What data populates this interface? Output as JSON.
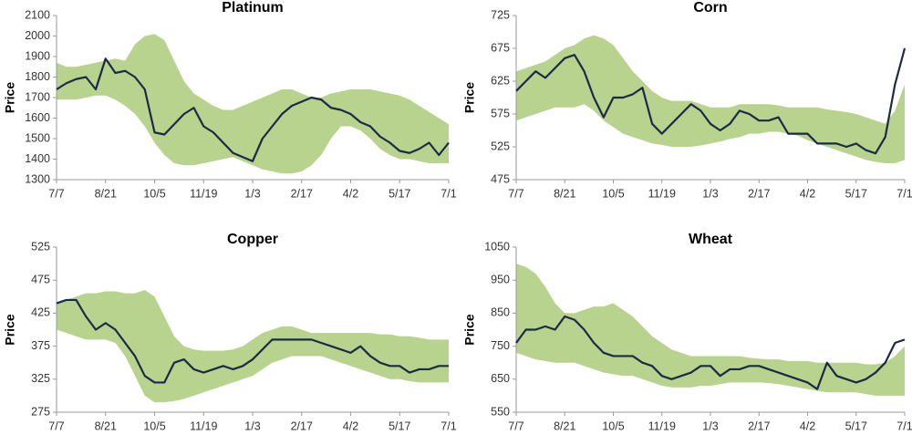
{
  "chart_data": [
    {
      "type": "band-line",
      "title": "Platinum",
      "y_label": "Price",
      "categories": [
        "7/7",
        null,
        null,
        null,
        null,
        "8/21",
        null,
        null,
        null,
        null,
        "10/5",
        null,
        null,
        null,
        null,
        "11/19",
        null,
        null,
        null,
        null,
        "1/3",
        null,
        null,
        null,
        null,
        "2/17",
        null,
        null,
        null,
        null,
        "4/2",
        null,
        null,
        null,
        null,
        "5/17",
        null,
        null,
        null,
        null,
        "7/1"
      ],
      "values": [
        1740,
        1770,
        1790,
        1800,
        1740,
        1890,
        1820,
        1830,
        1800,
        1740,
        1530,
        1520,
        1570,
        1620,
        1650,
        1560,
        1530,
        1480,
        1430,
        1410,
        1390,
        1500,
        1560,
        1620,
        1660,
        1680,
        1700,
        1690,
        1650,
        1640,
        1620,
        1580,
        1560,
        1510,
        1480,
        1440,
        1430,
        1450,
        1480,
        1420,
        1480
      ],
      "band_upper": [
        1870,
        1850,
        1850,
        1860,
        1870,
        1880,
        1890,
        1880,
        1960,
        2000,
        2010,
        1980,
        1880,
        1780,
        1720,
        1690,
        1660,
        1640,
        1640,
        1660,
        1680,
        1700,
        1720,
        1740,
        1740,
        1720,
        1700,
        1700,
        1720,
        1730,
        1740,
        1740,
        1740,
        1730,
        1720,
        1710,
        1690,
        1660,
        1630,
        1600,
        1570
      ],
      "band_lower": [
        1690,
        1690,
        1690,
        1700,
        1710,
        1710,
        1690,
        1660,
        1620,
        1560,
        1480,
        1420,
        1380,
        1370,
        1370,
        1380,
        1390,
        1400,
        1410,
        1390,
        1370,
        1350,
        1340,
        1330,
        1330,
        1340,
        1370,
        1420,
        1500,
        1560,
        1560,
        1540,
        1500,
        1450,
        1420,
        1400,
        1400,
        1390,
        1380,
        1380,
        1380
      ],
      "color": "#1b2a47",
      "band_color": "#b7d38e",
      "ylim": [
        1300,
        2100
      ],
      "yticks": [
        1300,
        1400,
        1500,
        1600,
        1700,
        1800,
        1900,
        2000,
        2100
      ]
    },
    {
      "type": "band-line",
      "title": "Corn",
      "y_label": "Price",
      "categories": [
        "7/7",
        null,
        null,
        null,
        null,
        "8/21",
        null,
        null,
        null,
        null,
        "10/5",
        null,
        null,
        null,
        null,
        "11/19",
        null,
        null,
        null,
        null,
        "1/3",
        null,
        null,
        null,
        null,
        "2/17",
        null,
        null,
        null,
        null,
        "4/2",
        null,
        null,
        null,
        null,
        "5/17",
        null,
        null,
        null,
        null,
        "7/1"
      ],
      "values": [
        610,
        625,
        640,
        630,
        645,
        660,
        665,
        640,
        600,
        570,
        600,
        600,
        605,
        615,
        560,
        545,
        560,
        575,
        590,
        580,
        560,
        550,
        560,
        580,
        575,
        565,
        565,
        570,
        545,
        545,
        545,
        530,
        530,
        530,
        525,
        530,
        520,
        515,
        540,
        620,
        675
      ],
      "band_upper": [
        640,
        645,
        650,
        655,
        665,
        675,
        680,
        690,
        695,
        690,
        680,
        660,
        640,
        625,
        610,
        600,
        595,
        595,
        595,
        590,
        585,
        585,
        585,
        590,
        590,
        590,
        590,
        588,
        585,
        585,
        585,
        585,
        582,
        580,
        578,
        575,
        570,
        565,
        560,
        580,
        620
      ],
      "band_lower": [
        565,
        570,
        575,
        580,
        585,
        585,
        585,
        590,
        580,
        565,
        555,
        545,
        540,
        535,
        530,
        528,
        525,
        525,
        525,
        527,
        530,
        533,
        537,
        540,
        545,
        545,
        548,
        548,
        545,
        542,
        535,
        530,
        525,
        520,
        515,
        510,
        505,
        502,
        500,
        500,
        505
      ],
      "color": "#1b2a47",
      "band_color": "#b7d38e",
      "ylim": [
        475,
        725
      ],
      "yticks": [
        475,
        525,
        575,
        625,
        675,
        725
      ]
    },
    {
      "type": "band-line",
      "title": "Copper",
      "y_label": "Price",
      "categories": [
        "7/7",
        null,
        null,
        null,
        null,
        "8/21",
        null,
        null,
        null,
        null,
        "10/5",
        null,
        null,
        null,
        null,
        "11/19",
        null,
        null,
        null,
        null,
        "1/3",
        null,
        null,
        null,
        null,
        "2/17",
        null,
        null,
        null,
        null,
        "4/2",
        null,
        null,
        null,
        null,
        "5/17",
        null,
        null,
        null,
        null,
        "7/1"
      ],
      "values": [
        440,
        445,
        445,
        420,
        400,
        410,
        400,
        380,
        360,
        330,
        320,
        320,
        350,
        355,
        340,
        335,
        340,
        345,
        340,
        345,
        355,
        370,
        385,
        385,
        385,
        385,
        385,
        380,
        375,
        370,
        365,
        375,
        360,
        350,
        345,
        345,
        335,
        340,
        340,
        345,
        345
      ],
      "band_upper": [
        440,
        445,
        450,
        455,
        455,
        458,
        458,
        455,
        455,
        460,
        450,
        420,
        390,
        375,
        370,
        368,
        368,
        368,
        370,
        375,
        385,
        395,
        400,
        405,
        405,
        400,
        395,
        395,
        395,
        395,
        395,
        395,
        395,
        393,
        393,
        390,
        390,
        388,
        385,
        385,
        385
      ],
      "band_lower": [
        400,
        395,
        390,
        385,
        385,
        385,
        380,
        360,
        330,
        300,
        290,
        290,
        292,
        295,
        300,
        305,
        310,
        315,
        320,
        325,
        330,
        340,
        350,
        355,
        360,
        360,
        360,
        360,
        355,
        350,
        345,
        340,
        335,
        330,
        325,
        325,
        322,
        320,
        320,
        320,
        320
      ],
      "color": "#1b2a47",
      "band_color": "#b7d38e",
      "ylim": [
        275,
        525
      ],
      "yticks": [
        275,
        325,
        375,
        425,
        475,
        525
      ]
    },
    {
      "type": "band-line",
      "title": "Wheat",
      "y_label": "Price",
      "categories": [
        "7/7",
        null,
        null,
        null,
        null,
        "8/21",
        null,
        null,
        null,
        null,
        "10/5",
        null,
        null,
        null,
        null,
        "11/19",
        null,
        null,
        null,
        null,
        "1/3",
        null,
        null,
        null,
        null,
        "2/17",
        null,
        null,
        null,
        null,
        "4/2",
        null,
        null,
        null,
        null,
        "5/17",
        null,
        null,
        null,
        null,
        "7/1"
      ],
      "values": [
        760,
        800,
        800,
        810,
        800,
        840,
        830,
        800,
        760,
        730,
        720,
        720,
        720,
        700,
        690,
        660,
        650,
        660,
        670,
        690,
        690,
        660,
        680,
        680,
        690,
        690,
        680,
        670,
        660,
        650,
        640,
        620,
        700,
        660,
        650,
        640,
        650,
        670,
        700,
        760,
        770
      ],
      "band_upper": [
        1000,
        990,
        970,
        930,
        880,
        850,
        850,
        860,
        870,
        870,
        880,
        860,
        840,
        810,
        780,
        760,
        740,
        730,
        720,
        720,
        720,
        720,
        720,
        720,
        715,
        712,
        710,
        710,
        705,
        705,
        705,
        700,
        700,
        700,
        700,
        700,
        695,
        695,
        700,
        720,
        750
      ],
      "band_lower": [
        730,
        720,
        710,
        705,
        700,
        700,
        700,
        690,
        680,
        670,
        665,
        660,
        660,
        650,
        640,
        630,
        625,
        625,
        625,
        630,
        630,
        635,
        640,
        640,
        640,
        640,
        638,
        635,
        630,
        625,
        620,
        615,
        610,
        610,
        610,
        610,
        605,
        600,
        600,
        600,
        600
      ],
      "color": "#1b2a47",
      "band_color": "#b7d38e",
      "ylim": [
        550,
        1050
      ],
      "yticks": [
        550,
        650,
        750,
        850,
        950,
        1050
      ]
    }
  ]
}
